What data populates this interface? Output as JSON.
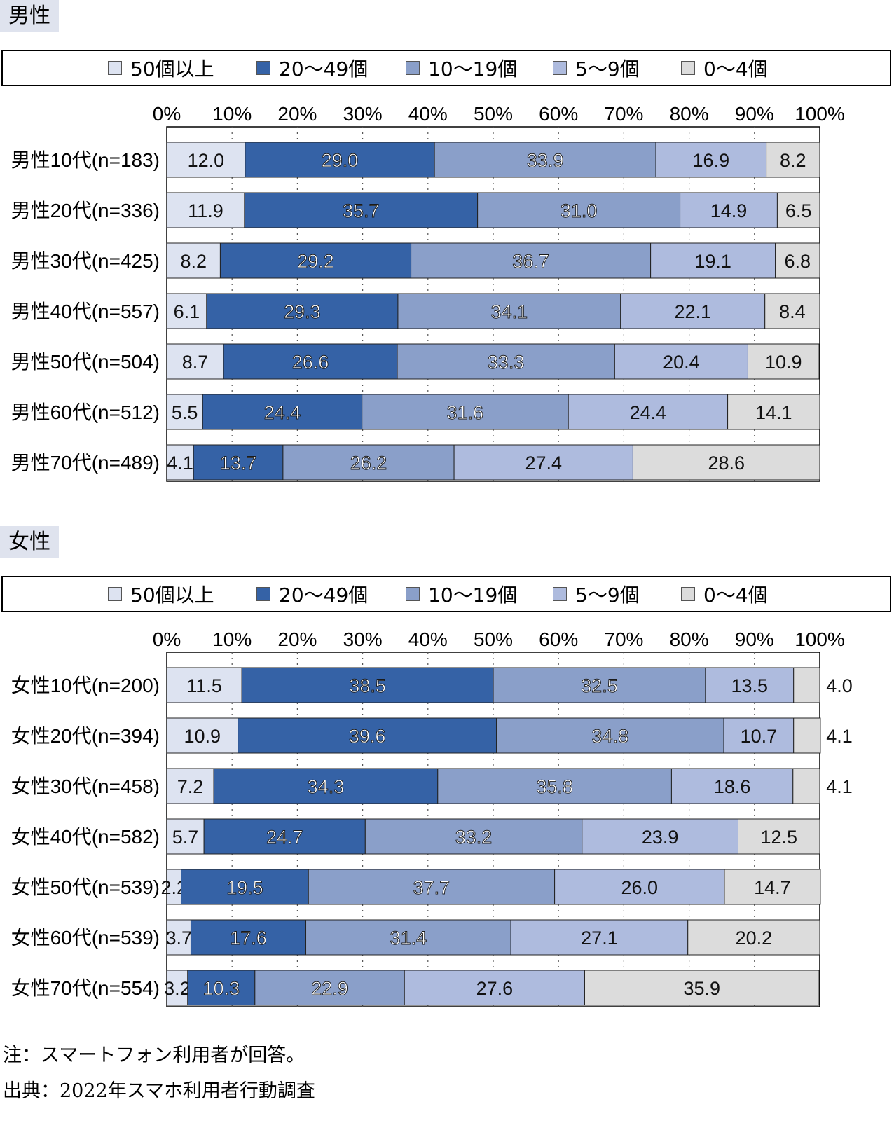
{
  "sections": [
    {
      "label": "男性"
    },
    {
      "label": "女性"
    }
  ],
  "legend": [
    "50個以上",
    "20〜49個",
    "10〜19個",
    "5〜9個",
    "0〜4個"
  ],
  "colors": [
    "#dde3f1",
    "#3562a6",
    "#8a9fc9",
    "#aebbde",
    "#dcdcdc"
  ],
  "ticks": [
    "0%",
    "10%",
    "20%",
    "30%",
    "40%",
    "50%",
    "60%",
    "70%",
    "80%",
    "90%",
    "100%"
  ],
  "notes": {
    "note": "注：スマートフォン利用者が回答。",
    "source": "出典：2022年スマホ利用者行動調査"
  },
  "chart_data": [
    {
      "type": "bar",
      "orientation": "horizontal",
      "stacked": true,
      "xlim": [
        0,
        100
      ],
      "categories": [
        "男性10代(n=183)",
        "男性20代(n=336)",
        "男性30代(n=425)",
        "男性40代(n=557)",
        "男性50代(n=504)",
        "男性60代(n=512)",
        "男性70代(n=489)"
      ],
      "series": [
        {
          "name": "50個以上",
          "values": [
            12.0,
            11.9,
            8.2,
            6.1,
            8.7,
            5.5,
            4.1
          ]
        },
        {
          "name": "20〜49個",
          "values": [
            29.0,
            35.7,
            29.2,
            29.3,
            26.6,
            24.4,
            13.7
          ]
        },
        {
          "name": "10〜19個",
          "values": [
            33.9,
            31.0,
            36.7,
            34.1,
            33.3,
            31.6,
            26.2
          ]
        },
        {
          "name": "5〜9個",
          "values": [
            16.9,
            14.9,
            19.1,
            22.1,
            20.4,
            24.4,
            27.4
          ]
        },
        {
          "name": "0〜4個",
          "values": [
            8.2,
            6.5,
            6.8,
            8.4,
            10.9,
            14.1,
            28.6
          ]
        }
      ]
    },
    {
      "type": "bar",
      "orientation": "horizontal",
      "stacked": true,
      "xlim": [
        0,
        100
      ],
      "categories": [
        "女性10代(n=200)",
        "女性20代(n=394)",
        "女性30代(n=458)",
        "女性40代(n=582)",
        "女性50代(n=539)",
        "女性60代(n=539)",
        "女性70代(n=554)"
      ],
      "series": [
        {
          "name": "50個以上",
          "values": [
            11.5,
            10.9,
            7.2,
            5.7,
            2.2,
            3.7,
            3.2
          ]
        },
        {
          "name": "20〜49個",
          "values": [
            38.5,
            39.6,
            34.3,
            24.7,
            19.5,
            17.6,
            10.3
          ]
        },
        {
          "name": "10〜19個",
          "values": [
            32.5,
            34.8,
            35.8,
            33.2,
            37.7,
            31.4,
            22.9
          ]
        },
        {
          "name": "5〜9個",
          "values": [
            13.5,
            10.7,
            18.6,
            23.9,
            26.0,
            27.1,
            27.6
          ]
        },
        {
          "name": "0〜4個",
          "values": [
            4.0,
            4.1,
            4.1,
            12.5,
            14.7,
            20.2,
            35.9
          ]
        }
      ]
    }
  ]
}
